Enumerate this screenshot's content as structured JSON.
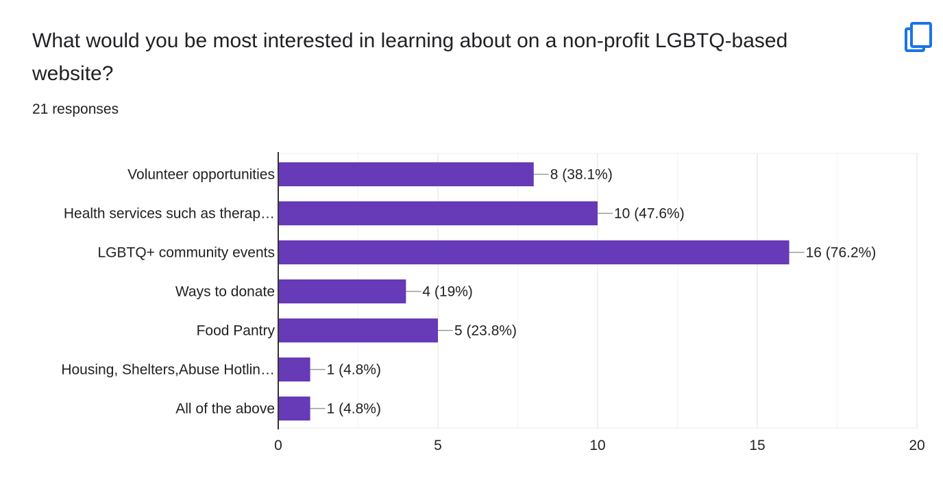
{
  "question": {
    "title": "What would you be most interested in learning about on a non-profit LGBTQ-based website?",
    "responses": "21 responses"
  },
  "toolbar": {
    "copy_icon": "copy-icon"
  },
  "colors": {
    "bar": "#673ab7",
    "text": "#202124",
    "grid": "#ebebeb",
    "axis": "#333333",
    "icon": "#1a73e8"
  },
  "chart_data": {
    "type": "bar",
    "orientation": "horizontal",
    "categories": [
      "Volunteer opportunities",
      "Health services such as therap…",
      "LGBTQ+ community events",
      "Ways to donate",
      "Food Pantry",
      "Housing, Shelters,Abuse Hotlin…",
      "All of the above"
    ],
    "values": [
      8,
      10,
      16,
      4,
      5,
      1,
      1
    ],
    "data_labels": [
      "8 (38.1%)",
      "10 (47.6%)",
      "16 (76.2%)",
      "4 (19%)",
      "5 (23.8%)",
      "1 (4.8%)",
      "1 (4.8%)"
    ],
    "xlim": [
      0,
      20
    ],
    "xticks": [
      0,
      5,
      10,
      15,
      20
    ],
    "grid": true,
    "legend": "none",
    "title": "",
    "xlabel": "",
    "ylabel": ""
  }
}
